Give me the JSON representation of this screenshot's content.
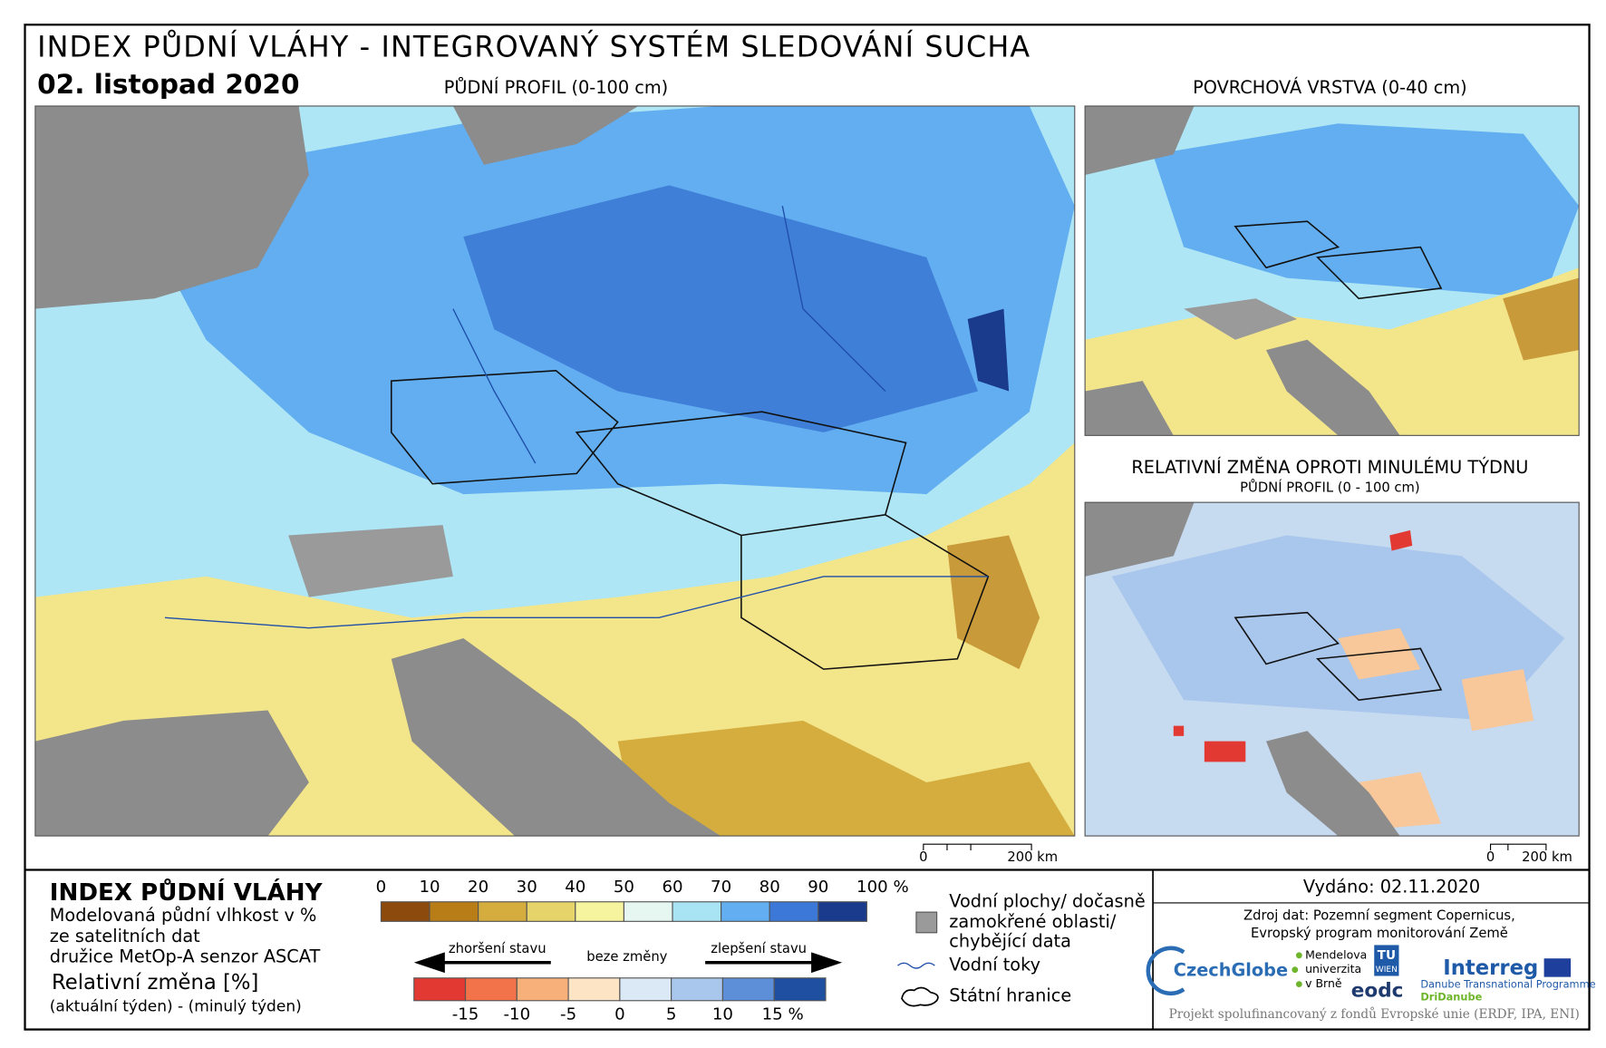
{
  "header": {
    "title": "INDEX PŮDNÍ VLÁHY - INTEGROVANÝ SYSTÉM SLEDOVÁNÍ SUCHA",
    "date": "02. listopad 2020"
  },
  "maps": {
    "main_title": "PŮDNÍ PROFIL (0-100 cm)",
    "surface_title": "POVRCHOVÁ VRSTVA (0-40 cm)",
    "change_title": "RELATIVNÍ ZMĚNA OPROTI MINULÉMU TÝDNU",
    "change_subtitle": "PŮDNÍ PROFIL (0 - 100 cm)",
    "scalebar": {
      "start": "0",
      "end": "200 km"
    }
  },
  "legend": {
    "title": "INDEX PŮDNÍ VLÁHY",
    "lines": [
      "Modelovaná půdní vlhkost v %",
      "ze satelitních dat",
      "družice MetOp-A senzor ASCAT"
    ],
    "change_title": "Relativní změna [%]",
    "change_note": "(aktuální týden) - (minulý týden)",
    "index_labels": [
      "0",
      "10",
      "20",
      "30",
      "40",
      "50",
      "60",
      "70",
      "80",
      "90",
      "100 %"
    ],
    "index_colors": [
      "#8c4a0c",
      "#b87d16",
      "#d4ad3e",
      "#e6d46a",
      "#f7f4a0",
      "#e6f7f2",
      "#a8e4f4",
      "#62aef0",
      "#3b78d8",
      "#1a3a8c"
    ],
    "worse": "zhoršení stavu",
    "none": "beze změny",
    "better": "zlepšení stavu",
    "change_labels": [
      "-15",
      "-10",
      "-5",
      "0",
      "5",
      "10",
      "15 %"
    ],
    "change_colors": [
      "#e23a32",
      "#f2734a",
      "#f8b07a",
      "#fde4c4",
      "#dbe8f6",
      "#a9c6ec",
      "#5d8fd8",
      "#1f4fa0"
    ],
    "water": [
      "Vodní plochy/ dočasně",
      "zamokřené oblasti/",
      "chybějící data"
    ],
    "rivers": "Vodní toky",
    "borders": "Státní hranice"
  },
  "footer": {
    "issued": "Vydáno: 02.11.2020",
    "source": [
      "Zdroj dat: Pozemní segment Copernicus,",
      "Evropský program monitorování Země"
    ],
    "logos": {
      "czechglobe": "CzechGlobe",
      "mendel": [
        "Mendelova",
        "univerzita",
        "v Brně"
      ],
      "tu": [
        "TU",
        "WIEN"
      ],
      "eodc": "eodc",
      "interreg": "Interreg",
      "danube": "Danube Transnational Programme",
      "dridanube": "DriDanube"
    },
    "funding": "Projekt spolufinancovaný z fondů Evropské unie (ERDF, IPA, ENI)"
  }
}
